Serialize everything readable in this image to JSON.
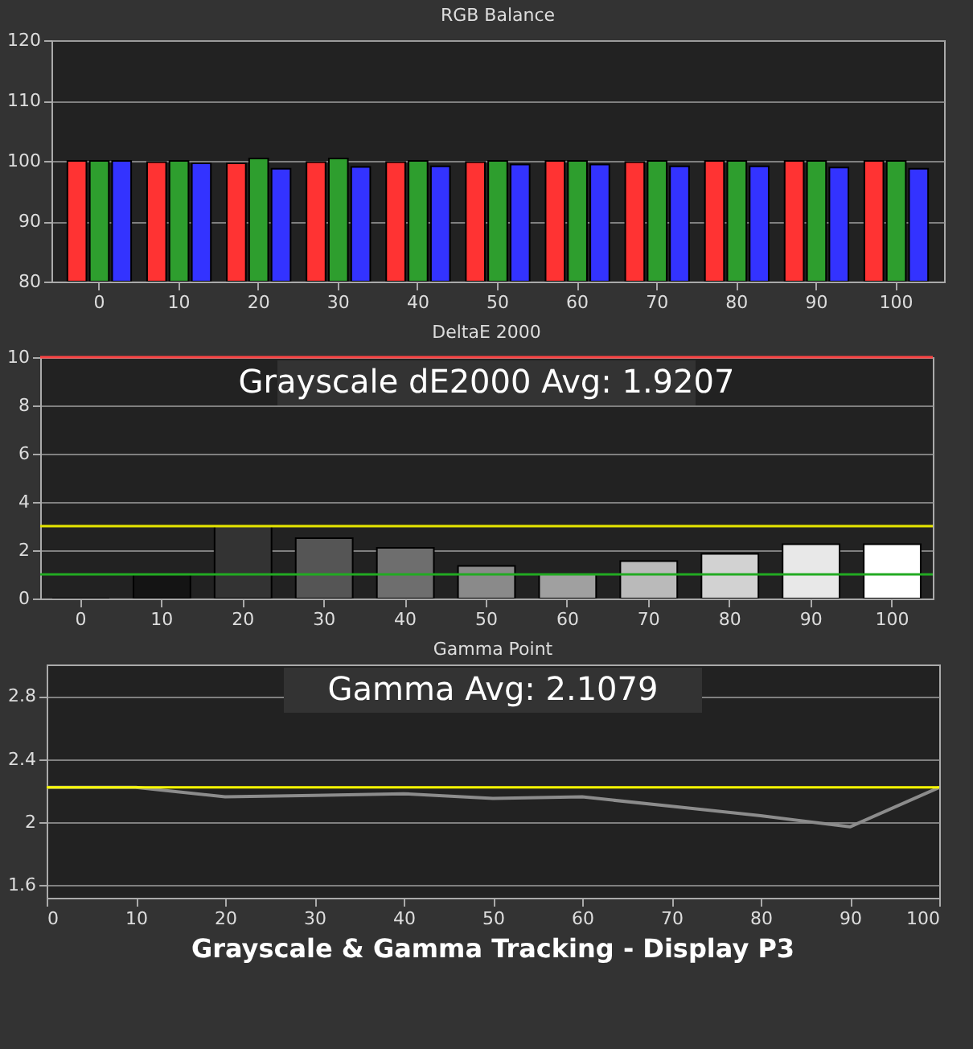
{
  "chart_data": [
    {
      "type": "bar",
      "title": "RGB Balance",
      "categories": [
        "0",
        "10",
        "20",
        "30",
        "40",
        "50",
        "60",
        "70",
        "80",
        "90",
        "100"
      ],
      "ylim": [
        80,
        120
      ],
      "yticks": [
        80,
        90,
        100,
        110,
        120
      ],
      "grid": "y",
      "series": [
        {
          "color": "#ff3333",
          "values": [
            100,
            99.8,
            99.6,
            99.8,
            99.8,
            99.8,
            100,
            99.8,
            100,
            100,
            100
          ]
        },
        {
          "color": "#2e9e2e",
          "values": [
            100,
            100,
            100.4,
            100.4,
            100,
            100,
            100,
            100,
            100,
            100,
            100
          ]
        },
        {
          "color": "#3333ff",
          "values": [
            100,
            99.6,
            98.7,
            99,
            99.1,
            99.4,
            99.4,
            99.1,
            99.1,
            98.9,
            98.7
          ]
        }
      ]
    },
    {
      "type": "bar",
      "title": "DeltaE 2000",
      "categories": [
        "0",
        "10",
        "20",
        "30",
        "40",
        "50",
        "60",
        "70",
        "80",
        "90",
        "100"
      ],
      "ylim": [
        0,
        10
      ],
      "yticks": [
        0,
        2,
        4,
        6,
        8,
        10
      ],
      "grid": "y",
      "values": [
        0,
        1.0,
        3.0,
        2.5,
        2.1,
        1.35,
        1.0,
        1.55,
        1.85,
        2.25,
        2.25
      ],
      "colors": [
        "#000000",
        "#141414",
        "#333333",
        "#555555",
        "#6e6e6e",
        "#8a8a8a",
        "#a0a0a0",
        "#bababa",
        "#d2d2d2",
        "#e8e8e8",
        "#ffffff"
      ],
      "ref_lines": [
        {
          "axis": "y",
          "value": 10,
          "color": "#ff4444"
        },
        {
          "axis": "y",
          "value": 3,
          "color": "#e6e600"
        },
        {
          "axis": "y",
          "value": 1,
          "color": "#22aa22"
        }
      ],
      "annotations": [
        "Grayscale dE2000 Avg: 1.9207"
      ]
    },
    {
      "type": "line",
      "title": "Gamma Point",
      "x": [
        0,
        10,
        20,
        30,
        40,
        50,
        60,
        70,
        80,
        90,
        100
      ],
      "xlim": [
        0,
        100
      ],
      "xticks": [
        0,
        10,
        20,
        30,
        40,
        50,
        60,
        70,
        80,
        90,
        100
      ],
      "ylim": [
        1.52,
        3.0
      ],
      "yticks": [
        1.6,
        2,
        2.4,
        2.8
      ],
      "grid": "y",
      "marker": "none",
      "series": [
        {
          "color": "#8c8c8c",
          "values": [
            2.22,
            2.22,
            2.16,
            2.17,
            2.18,
            2.15,
            2.16,
            2.1,
            2.04,
            1.97,
            2.22
          ]
        }
      ],
      "ref_lines": [
        {
          "axis": "y",
          "value": 2.22,
          "color": "#ffff00"
        }
      ],
      "annotations": [
        "Gamma Avg: 2.1079",
        "Grayscale & Gamma Tracking - Display P3"
      ]
    }
  ]
}
